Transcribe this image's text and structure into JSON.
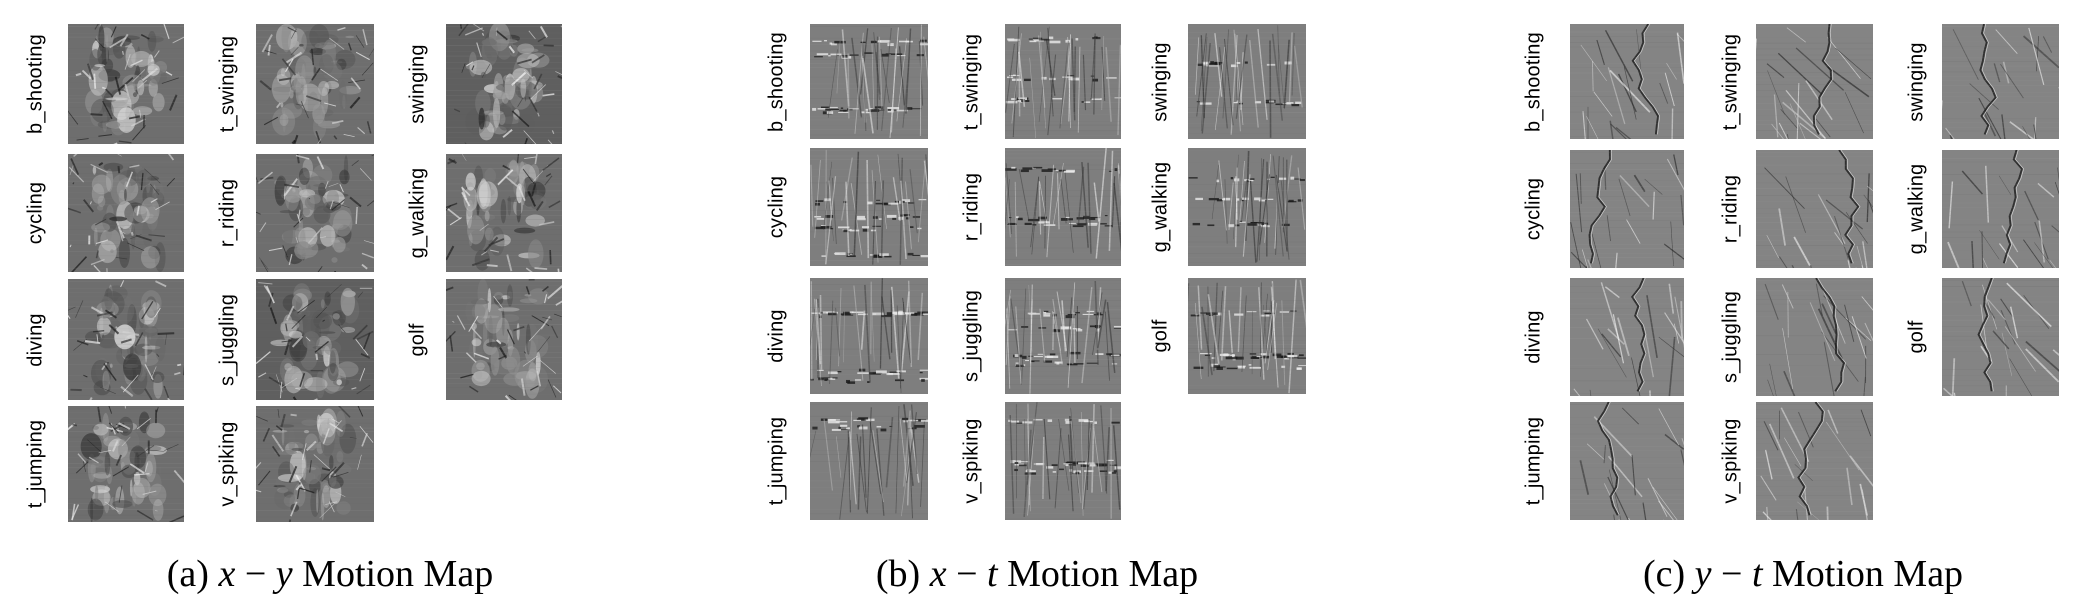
{
  "figure": {
    "panels": [
      {
        "id": "xy",
        "caption_label": "(a)",
        "caption_math": [
          "x",
          "−",
          "y"
        ],
        "caption_text": "Motion Map",
        "columns": [
          [
            "b_shooting",
            "cycling",
            "diving",
            "t_jumping"
          ],
          [
            "t_swinging",
            "r_riding",
            "s_juggling",
            "v_spiking"
          ],
          [
            "swinging",
            "g_walking",
            "golf"
          ]
        ]
      },
      {
        "id": "xt",
        "caption_label": "(b)",
        "caption_math": [
          "x",
          "−",
          "t"
        ],
        "caption_text": "Motion Map",
        "columns": [
          [
            "b_shooting",
            "cycling",
            "diving",
            "t_jumping"
          ],
          [
            "t_swinging",
            "r_riding",
            "s_juggling",
            "v_spiking"
          ],
          [
            "swinging",
            "g_walking",
            "golf"
          ]
        ]
      },
      {
        "id": "yt",
        "caption_label": "(c)",
        "caption_math": [
          "y",
          "−",
          "t"
        ],
        "caption_text": "Motion Map",
        "columns": [
          [
            "b_shooting",
            "cycling",
            "diving",
            "t_jumping"
          ],
          [
            "t_swinging",
            "r_riding",
            "s_juggling",
            "v_spiking"
          ],
          [
            "swinging",
            "g_walking",
            "golf"
          ]
        ]
      }
    ]
  }
}
